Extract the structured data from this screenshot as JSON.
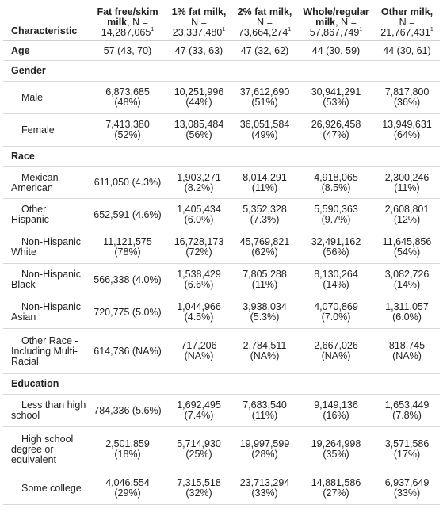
{
  "header": {
    "characteristic": "Characteristic",
    "columns": [
      {
        "name": "Fat free/skim milk",
        "n_label": ", N =",
        "n": "14,287,065",
        "mark": "1"
      },
      {
        "name": "1% fat milk,",
        "n_label": "N =",
        "n": "23,337,480",
        "mark": "1"
      },
      {
        "name": "2% fat milk,",
        "n_label": "N =",
        "n": "73,664,274",
        "mark": "1"
      },
      {
        "name": "Whole/regular milk",
        "n_label": ", N =",
        "n": "57,867,749",
        "mark": "1"
      },
      {
        "name": "Other milk,",
        "n_label": "N =",
        "n": "21,767,431",
        "mark": "1"
      }
    ]
  },
  "age": {
    "label": "Age",
    "values": [
      "57 (43, 70)",
      "47 (33, 63)",
      "47 (32, 62)",
      "44 (30, 59)",
      "44 (30, 61)"
    ]
  },
  "gender": {
    "title": "Gender",
    "rows": [
      {
        "label": "Male",
        "values": [
          "6,873,685 (48%)",
          "10,251,996 (44%)",
          "37,612,690 (51%)",
          "30,941,291 (53%)",
          "7,817,800 (36%)"
        ]
      },
      {
        "label": "Female",
        "values": [
          "7,413,380 (52%)",
          "13,085,484 (56%)",
          "36,051,584 (49%)",
          "26,926,458 (47%)",
          "13,949,631 (64%)"
        ]
      }
    ]
  },
  "race": {
    "title": "Race",
    "rows": [
      {
        "label": "Mexican American",
        "values": [
          "611,050 (4.3%)",
          "1,903,271 (8.2%)",
          "8,014,291 (11%)",
          "4,918,065 (8.5%)",
          "2,300,246 (11%)"
        ]
      },
      {
        "label": "Other Hispanic",
        "values": [
          "652,591 (4.6%)",
          "1,405,434 (6.0%)",
          "5,352,328 (7.3%)",
          "5,590,363 (9.7%)",
          "2,608,801 (12%)"
        ]
      },
      {
        "label": "Non-Hispanic White",
        "values": [
          "11,121,575 (78%)",
          "16,728,173 (72%)",
          "45,769,821 (62%)",
          "32,491,162 (56%)",
          "11,645,856 (54%)"
        ]
      },
      {
        "label": "Non-Hispanic Black",
        "values": [
          "566,338 (4.0%)",
          "1,538,429 (6.6%)",
          "7,805,288 (11%)",
          "8,130,264 (14%)",
          "3,082,726 (14%)"
        ]
      },
      {
        "label": "Non-Hispanic Asian",
        "values": [
          "720,775 (5.0%)",
          "1,044,966 (4.5%)",
          "3,938,034 (5.3%)",
          "4,070,869 (7.0%)",
          "1,311,057 (6.0%)"
        ]
      },
      {
        "label": "Other Race - Including Multi-Racial",
        "values": [
          "614,736 (NA%)",
          "717,206 (NA%)",
          "2,784,511 (NA%)",
          "2,667,026 (NA%)",
          "818,745 (NA%)"
        ]
      }
    ]
  },
  "education": {
    "title": "Education",
    "rows": [
      {
        "label": "Less than high school",
        "values": [
          "784,336 (5.6%)",
          "1,692,495 (7.4%)",
          "7,683,540 (11%)",
          "9,149,136 (16%)",
          "1,653,449 (7.8%)"
        ]
      },
      {
        "label": "High school degree or equivalent",
        "values": [
          "2,501,859 (18%)",
          "5,714,930 (25%)",
          "19,997,599 (28%)",
          "19,264,998 (35%)",
          "3,571,586 (17%)"
        ]
      },
      {
        "label": "Some college",
        "values": [
          "4,046,554 (29%)",
          "7,315,518 (32%)",
          "23,713,294 (33%)",
          "14,881,586 (27%)",
          "6,937,649 (33%)"
        ]
      }
    ]
  }
}
